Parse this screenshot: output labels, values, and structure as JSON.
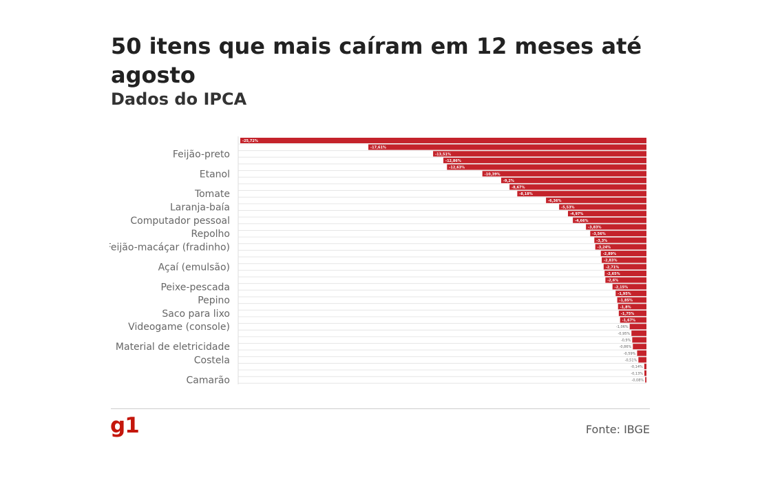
{
  "page": {
    "title": "50 itens que mais caíram em 12 meses até agosto",
    "subtitle": "Dados do IPCA",
    "logo": "g1",
    "source": "Fonte: IBGE",
    "bar_color": "#c4232b",
    "brand_color": "#c4170c"
  },
  "chart_data": {
    "type": "bar",
    "orientation": "horizontal",
    "xlim": [
      -25.72,
      0
    ],
    "grid": true,
    "categories": [
      "",
      "",
      "Feijão-preto",
      "",
      "",
      "Etanol",
      "",
      "",
      "Tomate",
      "",
      "Laranja-baía",
      "",
      "Computador pessoal",
      "",
      "Repolho",
      "",
      "Feijão-macáçar (fradinho)",
      "",
      "",
      "Açaí (emulsão)",
      "",
      "",
      "Peixe-pescada",
      "",
      "Pepino",
      "",
      "Saco para lixo",
      "",
      "Videogame (console)",
      "",
      "",
      "Material de eletricidade",
      "",
      "Costela",
      "",
      "",
      "Camarão"
    ],
    "values": [
      -25.72,
      -17.61,
      -13.51,
      -12.86,
      -12.63,
      -10.39,
      -9.2,
      -8.67,
      -8.18,
      -6.36,
      -5.53,
      -4.97,
      -4.66,
      -3.83,
      -3.56,
      -3.3,
      -3.24,
      -2.89,
      -2.83,
      -2.71,
      -2.65,
      -2.6,
      -2.15,
      -1.95,
      -1.85,
      -1.8,
      -1.75,
      -1.67,
      -1.06,
      -0.95,
      -0.9,
      -0.86,
      -0.59,
      -0.51,
      -0.14,
      -0.13,
      -0.08
    ],
    "value_labels": [
      "-25,72%",
      "-17,61%",
      "-13,51%",
      "-12,86%",
      "-12,63%",
      "-10,39%",
      "-9,2%",
      "-8,67%",
      "-8,18%",
      "-6,36%",
      "-5,53%",
      "-4,97%",
      "-4,66%",
      "-3,83%",
      "-3,56%",
      "-3,3%",
      "-3,24%",
      "-2,89%",
      "-2,83%",
      "-2,71%",
      "-2,65%",
      "-2,6%",
      "-2,15%",
      "-1,95%",
      "-1,85%",
      "-1,8%",
      "-1,75%",
      "-1,67%",
      "-1,06%",
      "-0,95%",
      "-0,9%",
      "-0,86%",
      "-0,59%",
      "-0,51%",
      "-0,14%",
      "-0,13%",
      "-0,08%"
    ]
  }
}
